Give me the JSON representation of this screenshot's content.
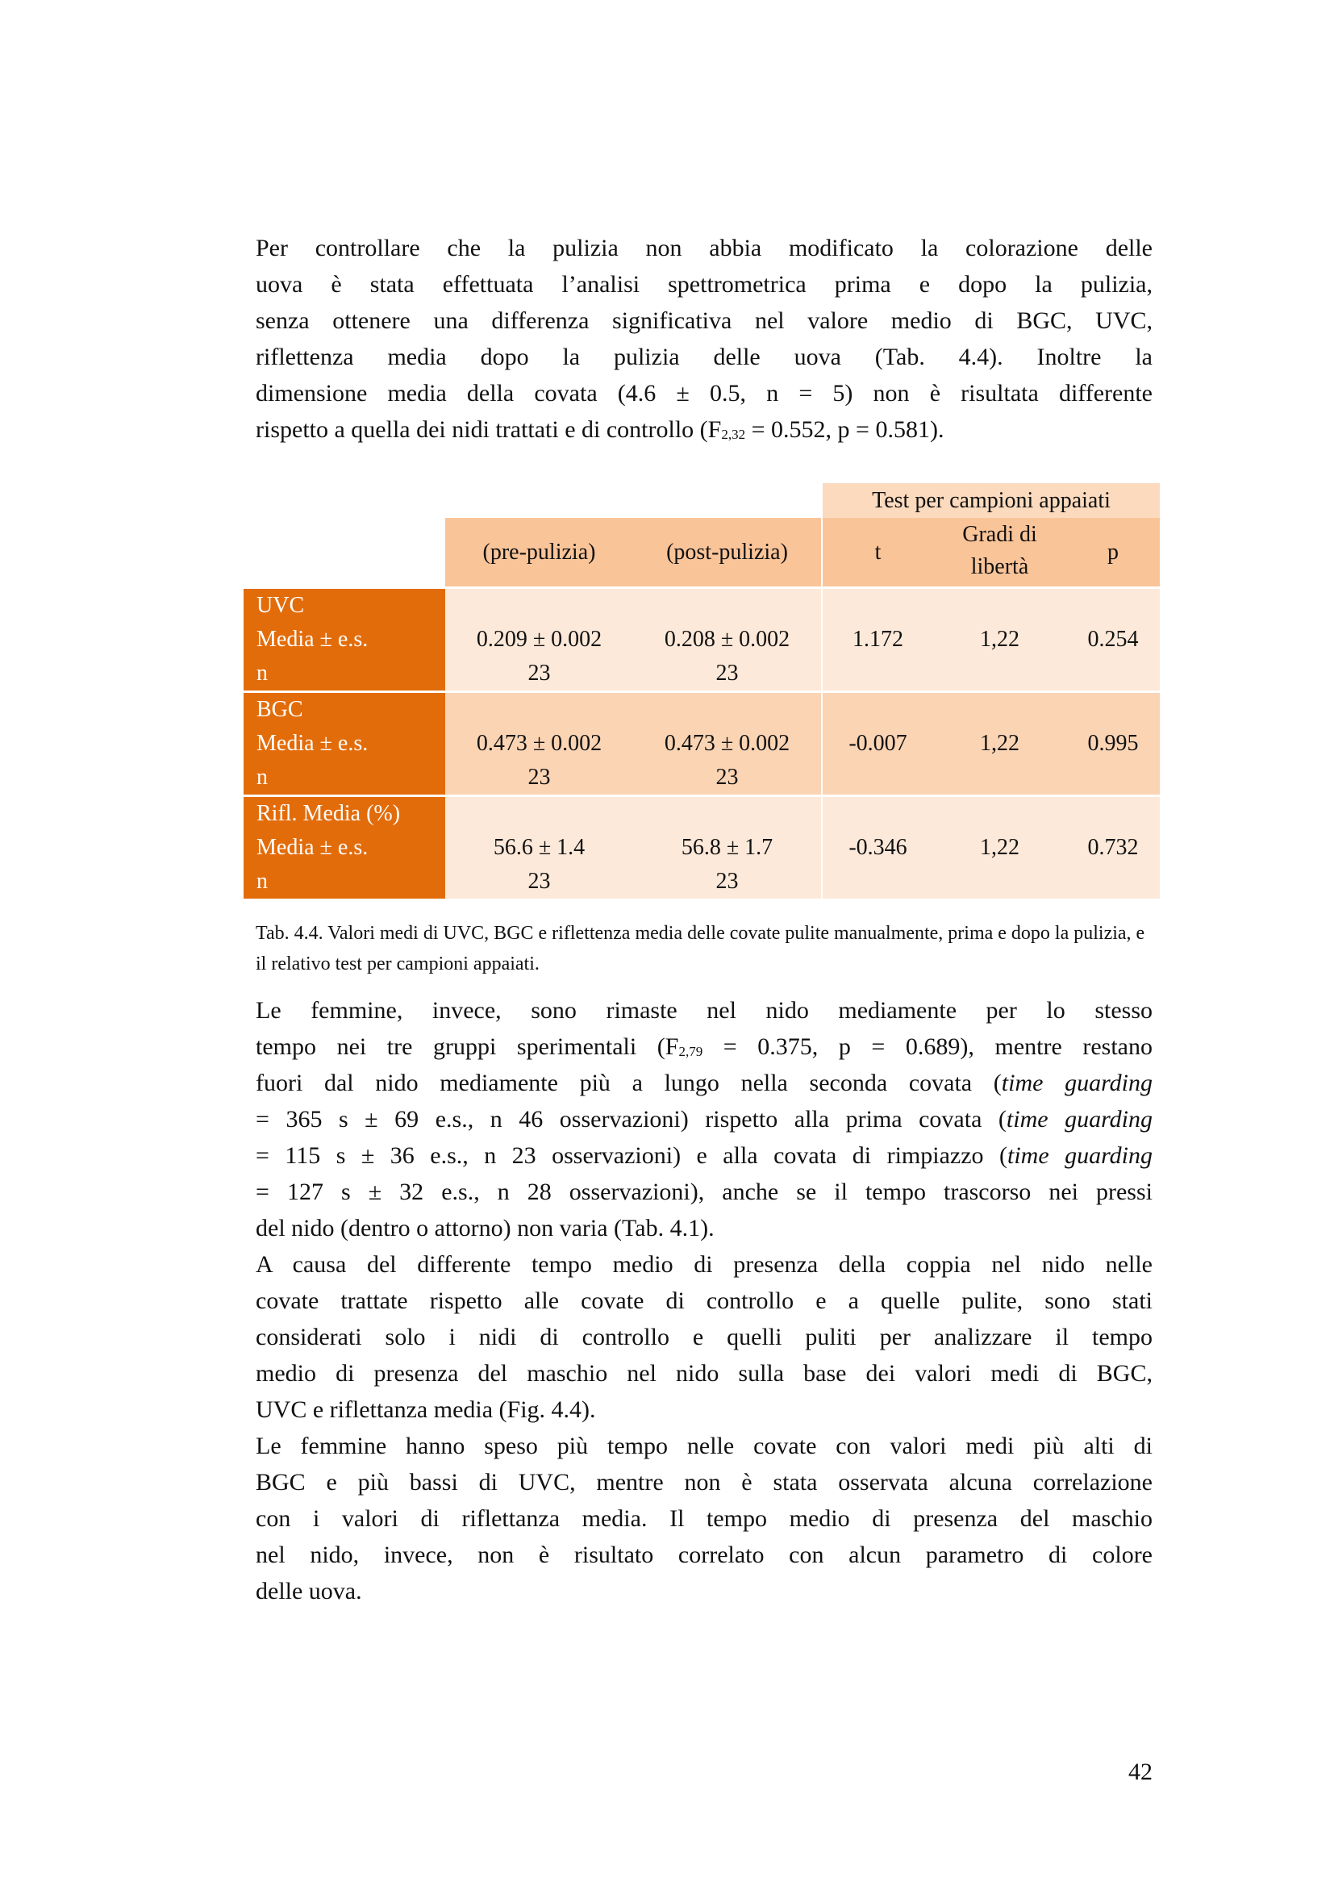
{
  "paragraph1": [
    [
      {
        "t": "Per controllare che la pulizia non abbia modificato la colorazione delle"
      }
    ],
    [
      {
        "t": "uova è stata effettuata l’analisi spettrometrica prima e dopo la pulizia,"
      }
    ],
    [
      {
        "t": "senza ottenere una differenza significativa nel valore medio di BGC, UVC,"
      }
    ],
    [
      {
        "t": "riflettenza media dopo la pulizia delle uova (Tab. 4.4). Inoltre la"
      }
    ],
    [
      {
        "t": "dimensione media della covata (4.6 ± 0.5, n = 5) non è risultata differente"
      }
    ],
    [
      {
        "t": "rispetto a quella dei nidi trattati e di controllo (F"
      },
      {
        "t": "2,32",
        "sub": true
      },
      {
        "t": " = 0.552, p = 0.581)."
      }
    ]
  ],
  "table": {
    "group_header": "Test per campioni appaiati",
    "columns": [
      "(pre-pulizia)",
      "(post-pulizia)",
      "t",
      "Gradi di libertà",
      "p"
    ],
    "rows": [
      {
        "label": "UVC",
        "sub1": "Media ± e.s.",
        "sub2": "n",
        "pre": "0.209 ± 0.002",
        "pre_n": "23",
        "post": "0.208 ± 0.002",
        "post_n": "23",
        "t": "1.172",
        "df": "1,22",
        "p": "0.254"
      },
      {
        "label": "BGC",
        "sub1": "Media ± e.s.",
        "sub2": "n",
        "pre": "0.473 ± 0.002",
        "pre_n": "23",
        "post": "0.473 ± 0.002",
        "post_n": "23",
        "t": "-0.007",
        "df": "1,22",
        "p": "0.995"
      },
      {
        "label": "Rifl. Media (%)",
        "sub1": "Media ± e.s.",
        "sub2": "n",
        "pre": "56.6 ± 1.4",
        "pre_n": "23",
        "post": "56.8 ± 1.7",
        "post_n": "23",
        "t": "-0.346",
        "df": "1,22",
        "p": "0.732"
      }
    ],
    "colors": {
      "dark": "#E36C0A",
      "header": "#FAC499",
      "light": "#FDE9D9",
      "mid": "#FBD4B4"
    }
  },
  "caption": "Tab. 4.4. Valori medi di UVC, BGC e riflettenza media delle covate pulite manualmente, prima e dopo la pulizia, e il relativo test per campioni appaiati.",
  "paragraph2": [
    [
      {
        "t": "Le femmine, invece, sono rimaste nel nido mediamente per lo stesso"
      }
    ],
    [
      {
        "t": "tempo nei tre gruppi sperimentali (F"
      },
      {
        "t": "2,79",
        "sub": true
      },
      {
        "t": " = 0.375, p = 0.689), mentre restano"
      }
    ],
    [
      {
        "t": "fuori dal nido mediamente più a lungo nella seconda covata ("
      },
      {
        "t": "time guarding",
        "i": true
      }
    ],
    [
      {
        "t": "= 365 s ± 69 e.s., n 46 osservazioni) rispetto alla prima covata ("
      },
      {
        "t": "time guarding",
        "i": true
      }
    ],
    [
      {
        "t": "= 115 s ± 36 e.s., n 23 osservazioni) e alla covata di rimpiazzo ("
      },
      {
        "t": "time guarding",
        "i": true
      }
    ],
    [
      {
        "t": "= 127 s ± 32 e.s., n 28 osservazioni), anche se il tempo trascorso nei pressi"
      }
    ],
    [
      {
        "t": "del nido (dentro o attorno) non varia (Tab. 4.1)."
      }
    ]
  ],
  "paragraph3": [
    [
      {
        "t": "A causa del differente tempo medio di presenza della coppia nel nido nelle"
      }
    ],
    [
      {
        "t": "covate trattate rispetto alle covate di controllo e a quelle pulite, sono stati"
      }
    ],
    [
      {
        "t": "considerati solo i nidi di controllo e quelli puliti per analizzare il tempo"
      }
    ],
    [
      {
        "t": "medio di presenza del maschio nel nido sulla base dei valori medi di BGC,"
      }
    ],
    [
      {
        "t": "UVC e riflettanza media (Fig. 4.4)."
      }
    ]
  ],
  "paragraph4": [
    [
      {
        "t": "Le femmine hanno speso più tempo nelle covate con valori medi più alti di"
      }
    ],
    [
      {
        "t": "BGC e più bassi di UVC, mentre non è stata osservata alcuna correlazione"
      }
    ],
    [
      {
        "t": "con i valori di riflettanza media. Il tempo medio di presenza del maschio"
      }
    ],
    [
      {
        "t": "nel nido, invece, non è risultato correlato con alcun parametro di colore"
      }
    ],
    [
      {
        "t": "delle uova."
      }
    ]
  ],
  "page_number": "42"
}
